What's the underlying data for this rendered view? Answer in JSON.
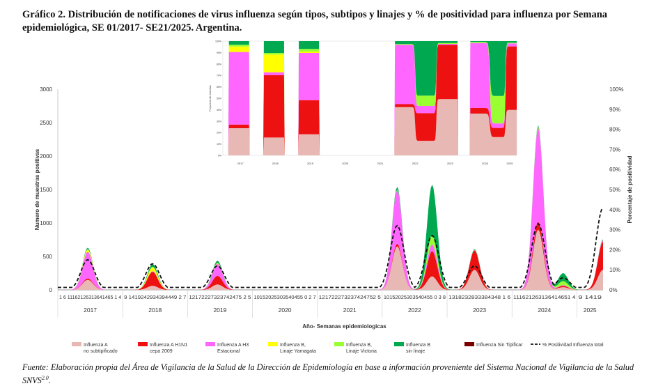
{
  "figure": {
    "title": "Gráfico 2. Distribución de notificaciones de virus influenza según tipos, subtipos y linajes y % de positividad para influenza por Semana epidemiológica, SE 01/2017- SE21/2025. Argentina.",
    "footer_text": "Fuente: Elaboración propia del Área de Vigilancia de la Salud de la Dirección de Epidemiología en base a información proveniente del Sistema Nacional de Vigilancia de la Salud SNVS",
    "footer_sup": "2.0",
    "footer_end": "."
  },
  "colors": {
    "no_subtipificado": "#e8b9b4",
    "h1n1": "#ee1111",
    "h3": "#ff66ff",
    "yamagata": "#ffff00",
    "victoria": "#99ff33",
    "sin_linaje": "#00a84f",
    "sin_tipificar": "#7a0000",
    "positividad": "#111111"
  },
  "chart_data": {
    "type": "area",
    "xlabel": "Año- Semanas epidemiologicas",
    "ylabel": "Numero de muestras positivas",
    "y2label": "Porcentaje de positividad",
    "ylim": [
      0,
      3000
    ],
    "y2lim": [
      0,
      100
    ],
    "yticks": [
      "0",
      "500",
      "1000",
      "1500",
      "2000",
      "2500",
      "3000"
    ],
    "y2ticks": [
      "0%",
      "10%",
      "20%",
      "30%",
      "40%",
      "50%",
      "60%",
      "70%",
      "80%",
      "90%",
      "100%"
    ],
    "week_tick_labels": [
      "1 6 11162126313641465 1 4",
      "9 1419242934394449 2 7",
      "12172227323742475 2 5",
      "10152025303540455 0 2 7",
      "121722273237424752 5",
      "10152025303540455 0 3 8",
      "1318232833384348 1 6",
      "111621263136414651 4",
      "9 1419"
    ],
    "years": [
      "2017",
      "2018",
      "2019",
      "2020",
      "2021",
      "2022",
      "2023",
      "2024",
      "2025"
    ],
    "legend_order": [
      "no_subtipificado",
      "h1n1",
      "h3",
      "yamagata",
      "victoria",
      "sin_linaje",
      "sin_tipificar",
      "positividad"
    ],
    "legend": {
      "no_subtipificado": [
        "Influenza A",
        "no subtipificado"
      ],
      "h1n1": [
        "Influenza A H1N1",
        "cepa 2009"
      ],
      "h3": [
        "Influenza A H3",
        "Estacional"
      ],
      "yamagata": [
        "Influenza B,",
        "Linaje Yamagata"
      ],
      "victoria": [
        "Influenza B,",
        "Linaje Victoria"
      ],
      "sin_linaje": [
        "Influenza B",
        "sin linaje"
      ],
      "sin_tipificar": [
        "Influenza Sin Tipificar"
      ],
      "positividad": [
        "% Positividad Influenza total"
      ]
    },
    "peaks": [
      {
        "year": "2017",
        "week": 24,
        "no_subtipificado": 150,
        "h1n1": 20,
        "h3": 400,
        "yamagata": 30,
        "victoria": 10,
        "sin_linaje": 20,
        "positividad": 15
      },
      {
        "year": "2018",
        "week": 24,
        "no_subtipificado": 60,
        "h1n1": 210,
        "h3": 10,
        "yamagata": 60,
        "victoria": 5,
        "sin_linaje": 40,
        "positividad": 13
      },
      {
        "year": "2019",
        "week": 24,
        "no_subtipificado": 80,
        "h1n1": 130,
        "h3": 180,
        "yamagata": 5,
        "victoria": 10,
        "sin_linaje": 30,
        "positividad": 12
      },
      {
        "year": "2022",
        "week": 12,
        "no_subtipificado": 650,
        "h1n1": 40,
        "h3": 800,
        "yamagata": 0,
        "victoria": 10,
        "sin_linaje": 40,
        "positividad": 32
      },
      {
        "year": "2022",
        "week": 40,
        "no_subtipificado": 200,
        "h1n1": 380,
        "h3": 100,
        "yamagata": 0,
        "victoria": 140,
        "sin_linaje": 750,
        "positividad": 27
      },
      {
        "year": "2023",
        "week": 22,
        "no_subtipificado": 300,
        "h1n1": 290,
        "h3": 5,
        "yamagata": 0,
        "victoria": 5,
        "sin_linaje": 10,
        "positividad": 12
      },
      {
        "year": "2024",
        "week": 21,
        "no_subtipificado": 900,
        "h1n1": 120,
        "h3": 1400,
        "yamagata": 0,
        "victoria": 20,
        "sin_linaje": 20,
        "positividad": 33
      },
      {
        "year": "2024",
        "week": 41,
        "no_subtipificado": 40,
        "h1n1": 20,
        "h3": 10,
        "yamagata": 0,
        "victoria": 60,
        "sin_linaje": 120,
        "positividad": 6
      },
      {
        "year": "2025",
        "week": 21,
        "no_subtipificado": 300,
        "h1n1": 420,
        "h3": 20,
        "yamagata": 0,
        "victoria": 5,
        "sin_linaje": 10,
        "positividad": 41
      }
    ],
    "inset": {
      "type": "area",
      "ylabel": "Proporción de muestras",
      "years": [
        "2017",
        "2018",
        "2019",
        "2020",
        "2021",
        "2022",
        "2023",
        "2024",
        "2025"
      ],
      "yticks": [
        "0%",
        "10%",
        "20%",
        "30%",
        "40%",
        "50%",
        "60%",
        "70%",
        "80%",
        "90%",
        "100%"
      ]
    }
  }
}
